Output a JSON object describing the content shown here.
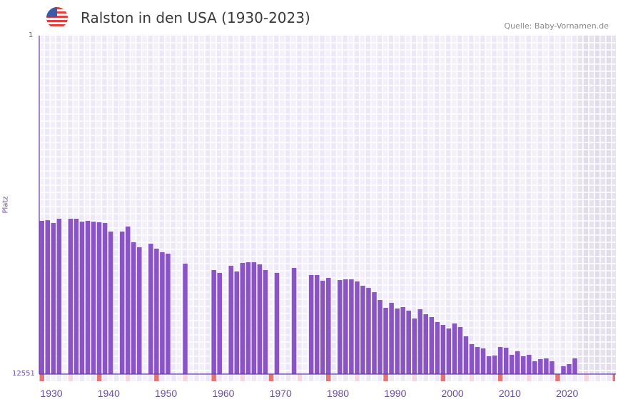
{
  "header": {
    "title": "Ralston in den USA (1930-2023)",
    "source": "Quelle: Baby-Vornamen.de",
    "flag_icon": "us-flag-icon"
  },
  "chart_data": {
    "type": "bar",
    "title": "Ralston in den USA (1930-2023)",
    "xlabel": "",
    "ylabel": "Platz",
    "y_scale": "log-inverted",
    "ylim": [
      12551,
      1
    ],
    "y_tick_labels": [
      "1",
      "12551"
    ],
    "xlim": [
      1930,
      2030
    ],
    "x_tick_labels": [
      "1930",
      "1940",
      "1950",
      "1960",
      "1970",
      "1980",
      "1990",
      "2000",
      "2010",
      "2020"
    ],
    "shaded_future_from": 2024,
    "colors": {
      "bar": "#8b54c6",
      "decade_marker": "#e57373",
      "halfdecade_marker": "#f5d5df",
      "future": "#e4e0ec"
    },
    "years": [
      1930,
      1931,
      1932,
      1933,
      1935,
      1936,
      1937,
      1938,
      1939,
      1940,
      1941,
      1942,
      1944,
      1945,
      1946,
      1947,
      1949,
      1950,
      1951,
      1952,
      1955,
      1960,
      1961,
      1963,
      1964,
      1965,
      1966,
      1967,
      1968,
      1969,
      1971,
      1974,
      1977,
      1978,
      1979,
      1980,
      1982,
      1983,
      1984,
      1985,
      1986,
      1987,
      1988,
      1989,
      1990,
      1991,
      1992,
      1993,
      1994,
      1995,
      1996,
      1997,
      1998,
      1999,
      2000,
      2001,
      2002,
      2003,
      2004,
      2005,
      2006,
      2007,
      2008,
      2009,
      2010,
      2011,
      2012,
      2013,
      2014,
      2015,
      2016,
      2017,
      2018,
      2019,
      2021,
      2022,
      2023
    ],
    "ranks": [
      175,
      172,
      186,
      165,
      165,
      165,
      179,
      175,
      179,
      182,
      186,
      236,
      236,
      205,
      318,
      365,
      331,
      380,
      420,
      437,
      577,
      690,
      747,
      613,
      718,
      566,
      555,
      555,
      589,
      690,
      747,
      650,
      793,
      793,
      930,
      859,
      912,
      894,
      894,
      949,
      1069,
      1135,
      1279,
      1590,
      1978,
      1722,
      2018,
      1939,
      2141,
      2665,
      2059,
      2366,
      2561,
      2942,
      3187,
      3519,
      3062,
      3381,
      4380,
      5447,
      5898,
      6139,
      7634,
      7483,
      5898,
      6017,
      7335,
      6645,
      7634,
      7335,
      8776,
      8268,
      8104,
      8776,
      10087,
      9504,
      8104
    ]
  }
}
